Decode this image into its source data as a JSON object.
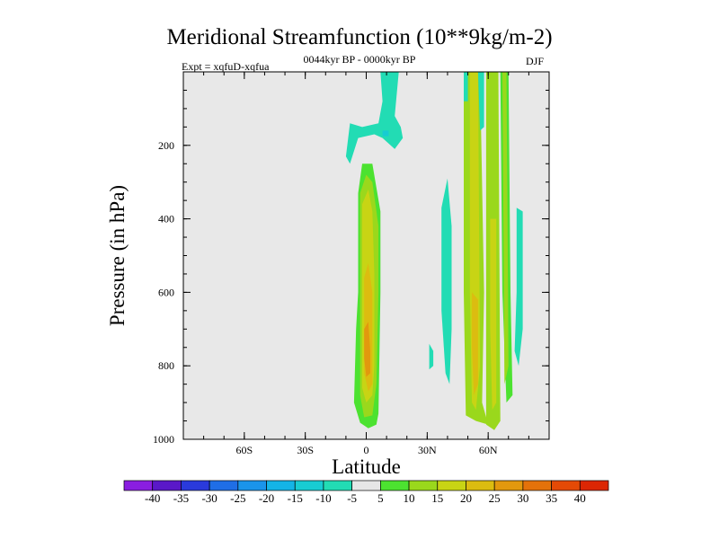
{
  "chart_data": {
    "type": "heatmap",
    "title": "Meridional Streamfunction (10**9kg/m-2)",
    "left_label": "Expt = xqfuD-xqfua",
    "center_label": "0044kyr BP - 0000kyr BP",
    "right_label": "DJF",
    "xlabel": "Latitude",
    "ylabel": "Pressure (in hPa)",
    "xlim": [
      -90,
      90
    ],
    "ylim": [
      1000,
      0
    ],
    "x_ticks": [
      {
        "value": -60,
        "label": "60S"
      },
      {
        "value": -30,
        "label": "30S"
      },
      {
        "value": 0,
        "label": "0"
      },
      {
        "value": 30,
        "label": "30N"
      },
      {
        "value": 60,
        "label": "60N"
      }
    ],
    "y_ticks": [
      {
        "value": 200,
        "label": "200"
      },
      {
        "value": 400,
        "label": "400"
      },
      {
        "value": 600,
        "label": "600"
      },
      {
        "value": 800,
        "label": "800"
      },
      {
        "value": 1000,
        "label": "1000"
      }
    ],
    "background": "#e8e8e8",
    "colorbar": {
      "levels": [
        "-40",
        "-35",
        "-30",
        "-25",
        "-20",
        "-15",
        "-10",
        "-5",
        "5",
        "10",
        "15",
        "20",
        "25",
        "30",
        "35",
        "40"
      ],
      "colors": [
        "#8a1ee0",
        "#5a18c8",
        "#2a3adc",
        "#1f6ee6",
        "#1a94ea",
        "#14b4e6",
        "#18ccd2",
        "#22dcb4",
        "#e6e6e6",
        "#4ce230",
        "#9ad81c",
        "#c8d414",
        "#dcbc10",
        "#e2980e",
        "#e4720a",
        "#e44a06",
        "#dc2604"
      ]
    },
    "regions": [
      {
        "name": "high-lat-a",
        "value": "5 to 10",
        "color": "#9ad81c",
        "poly": [
          [
            48,
            0
          ],
          [
            56,
            0
          ],
          [
            58,
            600
          ],
          [
            57,
            900
          ],
          [
            60,
            960
          ],
          [
            54,
            950
          ],
          [
            49,
            935
          ],
          [
            48,
            600
          ]
        ]
      },
      {
        "name": "high-lat-b",
        "value": "5 to 10",
        "color": "#9ad81c",
        "poly": [
          [
            59,
            0
          ],
          [
            65,
            0
          ],
          [
            66,
            950
          ],
          [
            63,
            975
          ],
          [
            59,
            960
          ]
        ]
      },
      {
        "name": "high-lat-c",
        "value": "0 to 5",
        "color": "#4ce230",
        "poly": [
          [
            66,
            0
          ],
          [
            70,
            0
          ],
          [
            71,
            600
          ],
          [
            72,
            880
          ],
          [
            69,
            900
          ],
          [
            67,
            600
          ]
        ]
      },
      {
        "name": "high-lat-c2",
        "value": "5 to 10",
        "color": "#9ad81c",
        "poly": [
          [
            67,
            0
          ],
          [
            69,
            0
          ],
          [
            70,
            800
          ],
          [
            68,
            850
          ]
        ]
      },
      {
        "name": "high-lat-core-a",
        "value": "10 to 15",
        "color": "#c8d414",
        "poly": [
          [
            51,
            0
          ],
          [
            55,
            0
          ],
          [
            56,
            800
          ],
          [
            54,
            920
          ],
          [
            52,
            900
          ],
          [
            51,
            600
          ]
        ]
      },
      {
        "name": "high-lat-core-b",
        "value": "10 to 15",
        "color": "#c8d414",
        "poly": [
          [
            61,
            400
          ],
          [
            64,
            400
          ],
          [
            64,
            900
          ],
          [
            62,
            920
          ],
          [
            61,
            700
          ]
        ]
      },
      {
        "name": "high-lat-core-c",
        "value": "15 to 20",
        "color": "#dcbc10",
        "poly": [
          [
            52,
            600
          ],
          [
            55,
            620
          ],
          [
            55,
            850
          ],
          [
            53,
            880
          ],
          [
            52,
            750
          ]
        ]
      },
      {
        "name": "eq-outer",
        "value": "0 to 5",
        "color": "#4ce230",
        "poly": [
          [
            -4,
            600
          ],
          [
            -4,
            330
          ],
          [
            -2,
            250
          ],
          [
            3,
            250
          ],
          [
            7,
            380
          ],
          [
            7,
            600
          ],
          [
            6,
            930
          ],
          [
            5,
            960
          ],
          [
            1,
            970
          ],
          [
            -3,
            955
          ],
          [
            -6,
            900
          ],
          [
            -5,
            700
          ]
        ]
      },
      {
        "name": "eq-mid",
        "value": "5 to 10",
        "color": "#9ad81c",
        "poly": [
          [
            -3,
            600
          ],
          [
            -3,
            330
          ],
          [
            0,
            280
          ],
          [
            3,
            300
          ],
          [
            6,
            420
          ],
          [
            6,
            600
          ],
          [
            5,
            850
          ],
          [
            3,
            935
          ],
          [
            -1,
            940
          ],
          [
            -3,
            880
          ]
        ]
      },
      {
        "name": "eq-inner",
        "value": "10 to 15",
        "color": "#c8d414",
        "poly": [
          [
            -2,
            500
          ],
          [
            -2,
            360
          ],
          [
            1,
            320
          ],
          [
            3,
            380
          ],
          [
            4,
            550
          ],
          [
            4,
            800
          ],
          [
            3,
            880
          ],
          [
            0,
            900
          ],
          [
            -2,
            860
          ],
          [
            -2,
            700
          ]
        ]
      },
      {
        "name": "eq-core",
        "value": "15 to 20",
        "color": "#dcbc10",
        "poly": [
          [
            -1,
            560
          ],
          [
            1,
            520
          ],
          [
            3,
            600
          ],
          [
            3,
            850
          ],
          [
            1,
            870
          ],
          [
            -1,
            820
          ]
        ]
      },
      {
        "name": "eq-core2",
        "value": "20 to 25",
        "color": "#e2980e",
        "poly": [
          [
            -1,
            700
          ],
          [
            1,
            680
          ],
          [
            2,
            760
          ],
          [
            2,
            820
          ],
          [
            0,
            830
          ],
          [
            -1,
            780
          ]
        ]
      },
      {
        "name": "neg-top",
        "value": "-5 to 0",
        "color": "#22dcb4",
        "poly": [
          [
            7,
            0
          ],
          [
            16,
            0
          ],
          [
            14,
            120
          ],
          [
            17,
            150
          ],
          [
            18,
            180
          ],
          [
            14,
            210
          ],
          [
            8,
            180
          ],
          [
            4,
            170
          ],
          [
            -4,
            180
          ],
          [
            -8,
            250
          ],
          [
            -10,
            230
          ],
          [
            -8,
            140
          ],
          [
            -2,
            150
          ],
          [
            6,
            140
          ],
          [
            8,
            80
          ]
        ]
      },
      {
        "name": "neg-top-dot",
        "value": "-10 to -5",
        "color": "#18ccd2",
        "poly": [
          [
            8,
            160
          ],
          [
            11,
            160
          ],
          [
            11,
            175
          ],
          [
            8,
            175
          ]
        ]
      },
      {
        "name": "neg-mid-a",
        "value": "-5 to 0",
        "color": "#22dcb4",
        "poly": [
          [
            37,
            370
          ],
          [
            40,
            290
          ],
          [
            42,
            420
          ],
          [
            42,
            700
          ],
          [
            41,
            850
          ],
          [
            39,
            820
          ],
          [
            37,
            650
          ]
        ]
      },
      {
        "name": "neg-mid-b",
        "value": "-5 to 0",
        "color": "#22dcb4",
        "poly": [
          [
            31,
            740
          ],
          [
            33,
            760
          ],
          [
            33,
            800
          ],
          [
            31,
            810
          ]
        ]
      },
      {
        "name": "neg-mid-c",
        "value": "-5 to 0",
        "color": "#22dcb4",
        "poly": [
          [
            74,
            370
          ],
          [
            77,
            380
          ],
          [
            77,
            700
          ],
          [
            75,
            800
          ],
          [
            73,
            760
          ],
          [
            74,
            600
          ]
        ]
      },
      {
        "name": "neg-high-a",
        "value": "-5 to 0",
        "color": "#22dcb4",
        "poly": [
          [
            55,
            0
          ],
          [
            58,
            0
          ],
          [
            58,
            150
          ],
          [
            56,
            160
          ]
        ]
      },
      {
        "name": "neg-high-b",
        "value": "-5 to 0",
        "color": "#22dcb4",
        "poly": [
          [
            48,
            0
          ],
          [
            50,
            0
          ],
          [
            50,
            80
          ],
          [
            48,
            80
          ]
        ]
      }
    ]
  }
}
